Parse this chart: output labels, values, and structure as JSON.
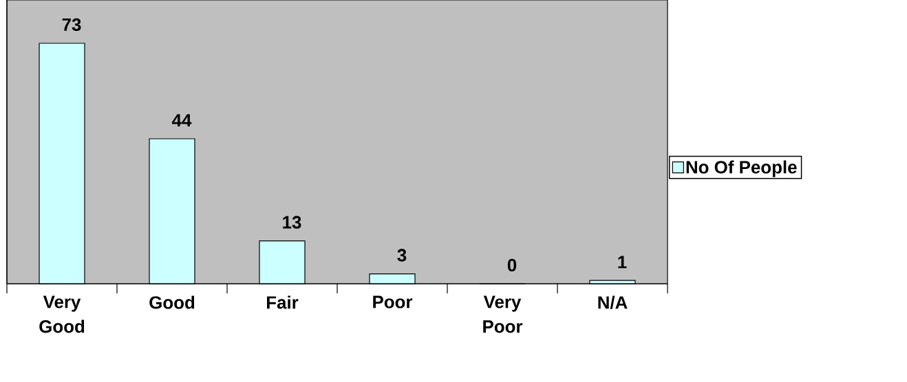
{
  "chart_data": {
    "type": "bar",
    "categories": [
      "Very Good",
      "Good",
      "Fair",
      "Poor",
      "Very Poor",
      "N/A"
    ],
    "series": [
      {
        "name": "No Of People",
        "color": "#ccffff",
        "values": [
          73,
          44,
          13,
          3,
          0,
          1
        ]
      }
    ],
    "data_labels": true,
    "legend": "right"
  }
}
